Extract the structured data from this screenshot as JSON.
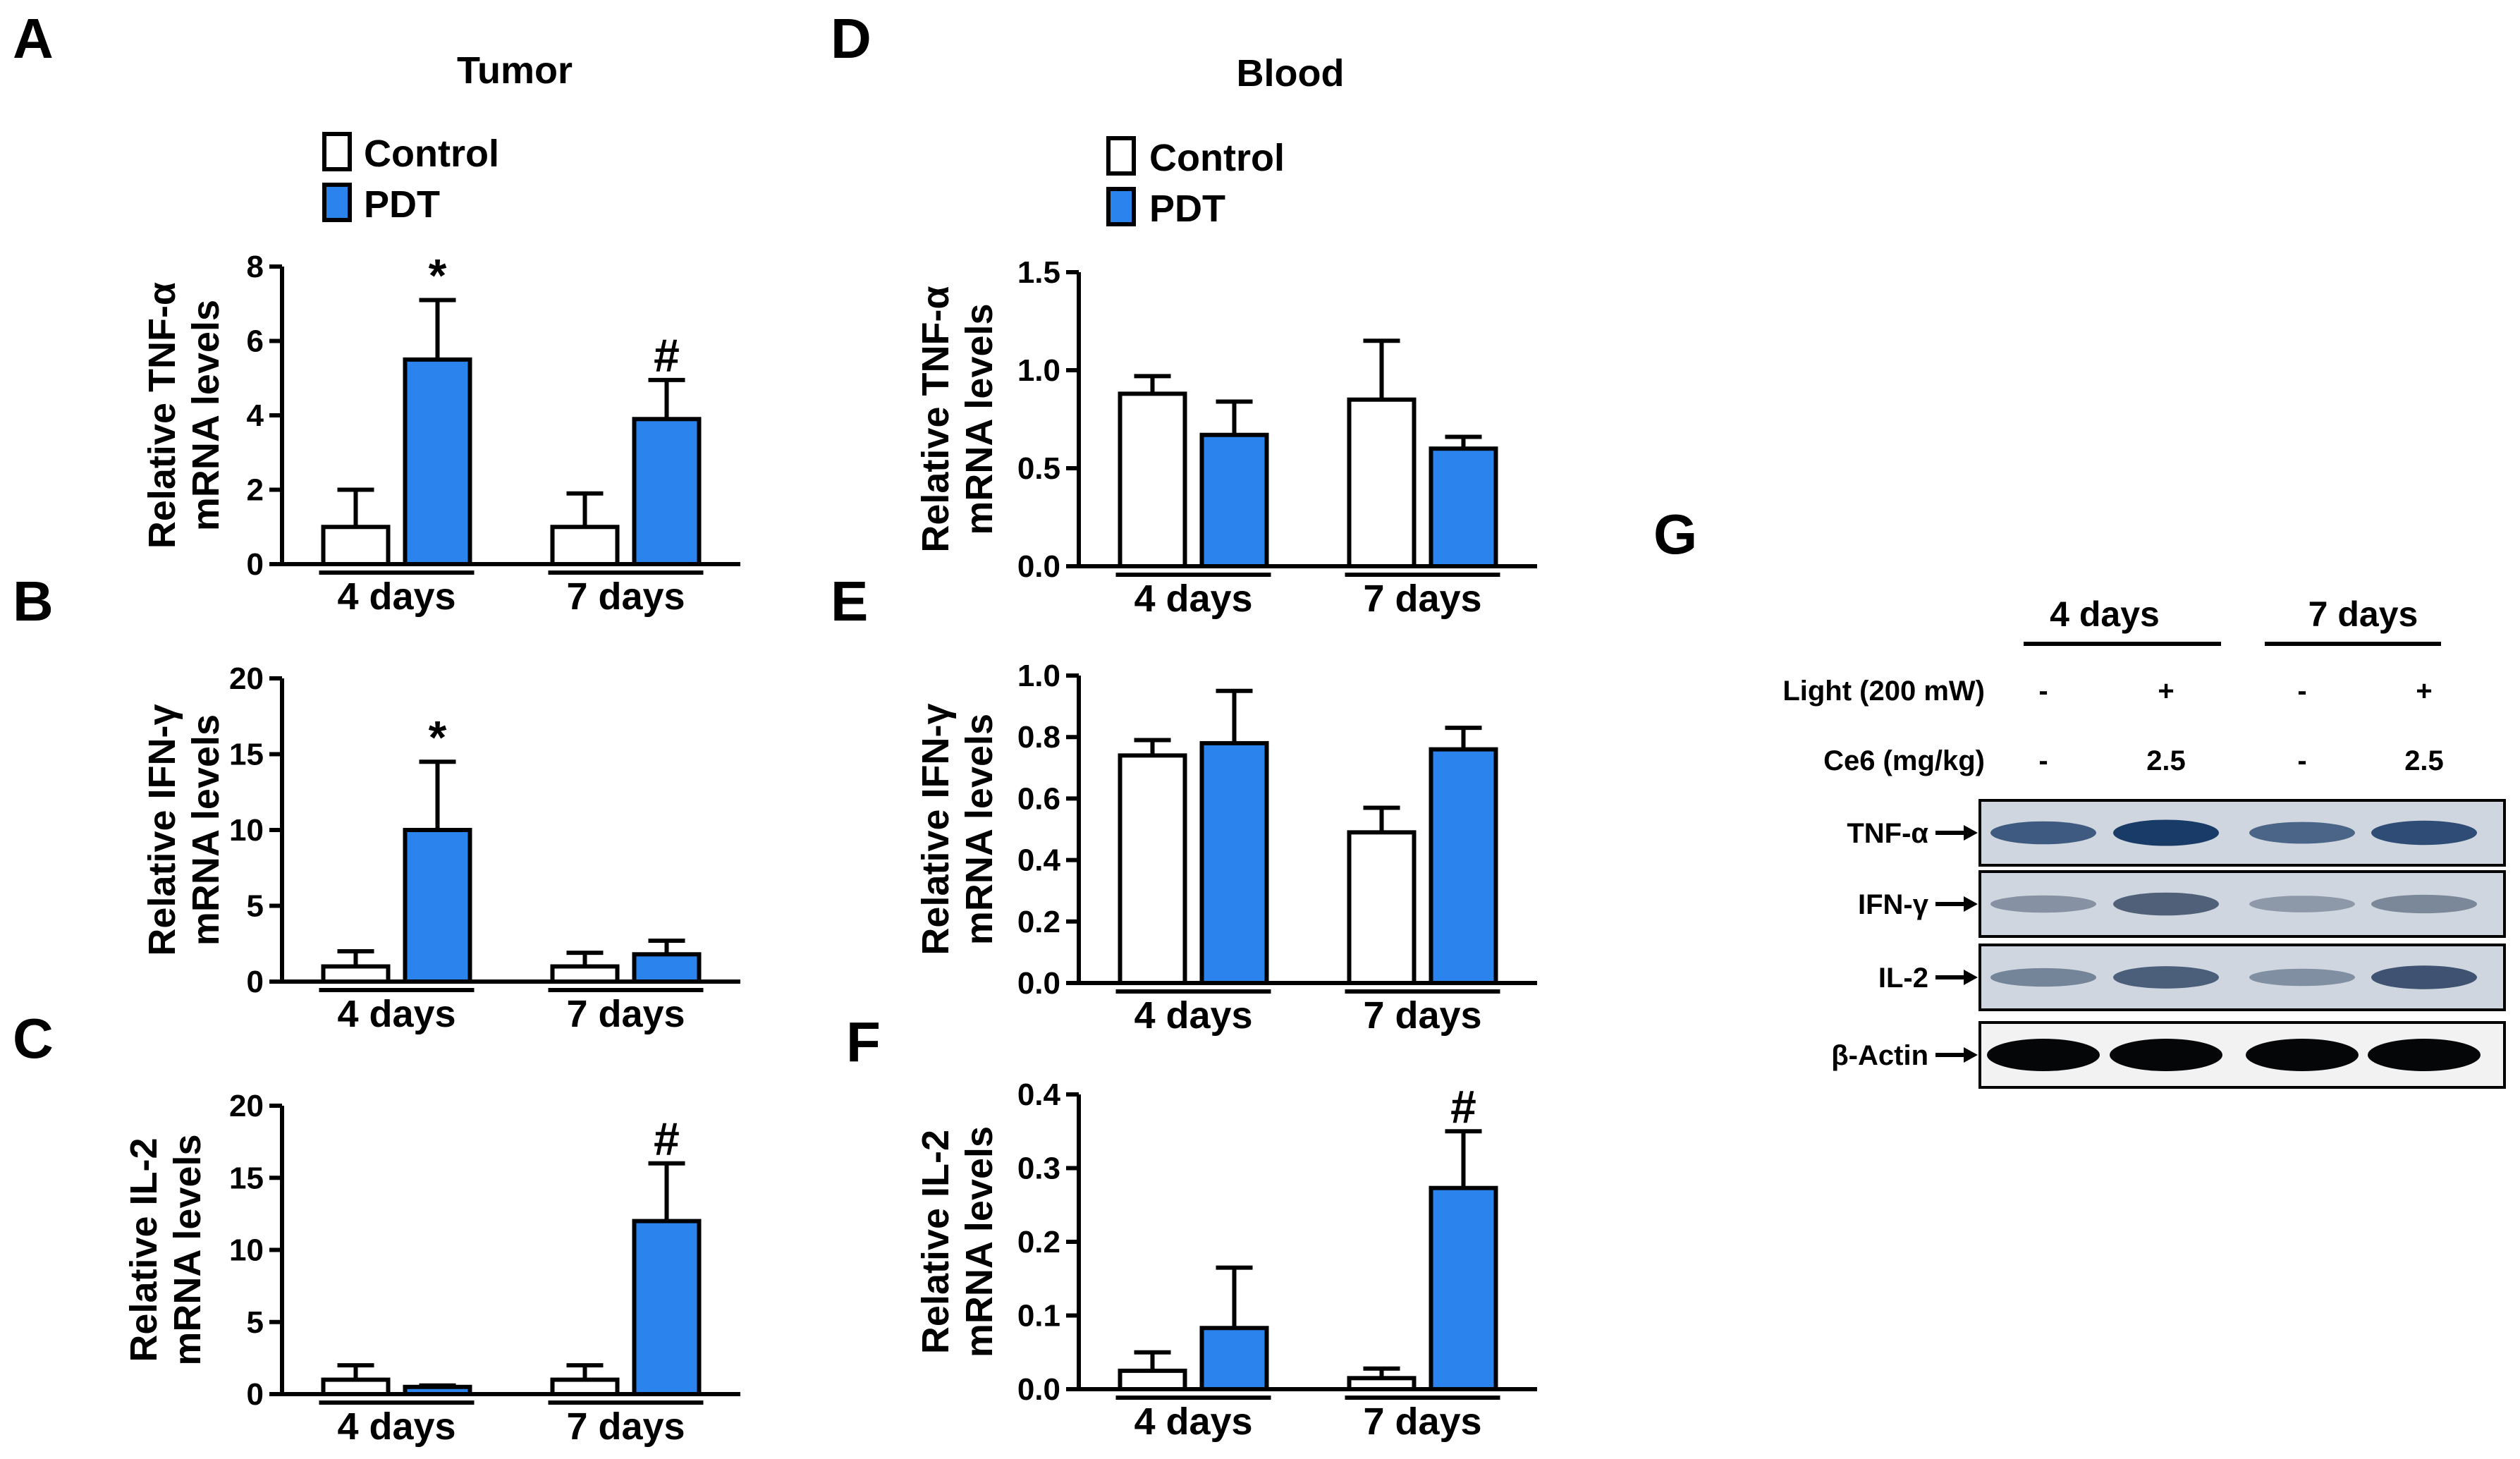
{
  "colors": {
    "control": "#ffffff",
    "pdt": "#2b84ee",
    "ink": "#000000"
  },
  "section_titles": {
    "tumor": "Tumor",
    "blood": "Blood"
  },
  "legend": {
    "control": "Control",
    "pdt": "PDT"
  },
  "chart_data": [
    {
      "panel": "A",
      "type": "bar",
      "group": "Tumor",
      "ylabel_line1": "Relative TNF-α",
      "ylabel_line2": "mRNA levels",
      "categories": [
        "4 days",
        "7 days"
      ],
      "ylim": [
        0,
        8
      ],
      "yticks": [
        "0",
        "2",
        "4",
        "6",
        "8"
      ],
      "ytick_values": [
        0,
        2,
        4,
        6,
        8
      ],
      "series": [
        {
          "name": "Control",
          "values": [
            1.0,
            1.0
          ],
          "errors": [
            1.0,
            0.9
          ]
        },
        {
          "name": "PDT",
          "values": [
            5.5,
            3.9
          ],
          "errors": [
            1.6,
            1.05
          ]
        }
      ],
      "annotations": [
        {
          "category": "4 days",
          "series": "PDT",
          "text": "*"
        },
        {
          "category": "7 days",
          "series": "PDT",
          "text": "#"
        }
      ]
    },
    {
      "panel": "B",
      "type": "bar",
      "group": "Tumor",
      "ylabel_line1": "Relative IFN-γ",
      "ylabel_line2": "mRNA levels",
      "categories": [
        "4 days",
        "7 days"
      ],
      "ylim": [
        0,
        20
      ],
      "yticks": [
        "0",
        "5",
        "10",
        "15",
        "20"
      ],
      "ytick_values": [
        0,
        5,
        10,
        15,
        20
      ],
      "series": [
        {
          "name": "Control",
          "values": [
            1.0,
            1.0
          ],
          "errors": [
            1.0,
            0.9
          ]
        },
        {
          "name": "PDT",
          "values": [
            10.0,
            1.8
          ],
          "errors": [
            4.5,
            0.9
          ]
        }
      ],
      "annotations": [
        {
          "category": "4 days",
          "series": "PDT",
          "text": "*"
        }
      ]
    },
    {
      "panel": "C",
      "type": "bar",
      "group": "Tumor",
      "ylabel_line1": "Relative IL-2",
      "ylabel_line2": "mRNA levels",
      "categories": [
        "4 days",
        "7 days"
      ],
      "ylim": [
        0,
        20
      ],
      "yticks": [
        "0",
        "5",
        "10",
        "15",
        "20"
      ],
      "ytick_values": [
        0,
        5,
        10,
        15,
        20
      ],
      "series": [
        {
          "name": "Control",
          "values": [
            1.0,
            1.0
          ],
          "errors": [
            1.0,
            1.0
          ]
        },
        {
          "name": "PDT",
          "values": [
            0.5,
            12.0
          ],
          "errors": [
            0.1,
            4.0
          ]
        }
      ],
      "annotations": [
        {
          "category": "7 days",
          "series": "PDT",
          "text": "#"
        }
      ]
    },
    {
      "panel": "D",
      "type": "bar",
      "group": "Blood",
      "ylabel_line1": "Relative TNF-α",
      "ylabel_line2": "mRNA levels",
      "categories": [
        "4 days",
        "7 days"
      ],
      "ylim": [
        0,
        1.5
      ],
      "yticks": [
        "0.0",
        "0.5",
        "1.0",
        "1.5"
      ],
      "ytick_values": [
        0,
        0.5,
        1.0,
        1.5
      ],
      "series": [
        {
          "name": "Control",
          "values": [
            0.88,
            0.85
          ],
          "errors": [
            0.09,
            0.3
          ]
        },
        {
          "name": "PDT",
          "values": [
            0.67,
            0.6
          ],
          "errors": [
            0.17,
            0.06
          ]
        }
      ],
      "annotations": []
    },
    {
      "panel": "E",
      "type": "bar",
      "group": "Blood",
      "ylabel_line1": "Relative IFN-γ",
      "ylabel_line2": "mRNA levels",
      "categories": [
        "4 days",
        "7 days"
      ],
      "ylim": [
        0,
        1.0
      ],
      "yticks": [
        "0.0",
        "0.2",
        "0.4",
        "0.6",
        "0.8",
        "1.0"
      ],
      "ytick_values": [
        0,
        0.2,
        0.4,
        0.6,
        0.8,
        1.0
      ],
      "series": [
        {
          "name": "Control",
          "values": [
            0.74,
            0.49
          ],
          "errors": [
            0.05,
            0.08
          ]
        },
        {
          "name": "PDT",
          "values": [
            0.78,
            0.76
          ],
          "errors": [
            0.17,
            0.07
          ]
        }
      ],
      "annotations": []
    },
    {
      "panel": "F",
      "type": "bar",
      "group": "Blood",
      "ylabel_line1": "Relative IL-2",
      "ylabel_line2": "mRNA levels",
      "categories": [
        "4 days",
        "7 days"
      ],
      "ylim": [
        0,
        0.4
      ],
      "yticks": [
        "0.0",
        "0.1",
        "0.2",
        "0.3",
        "0.4"
      ],
      "ytick_values": [
        0,
        0.1,
        0.2,
        0.3,
        0.4
      ],
      "series": [
        {
          "name": "Control",
          "values": [
            0.025,
            0.015
          ],
          "errors": [
            0.025,
            0.013
          ]
        },
        {
          "name": "PDT",
          "values": [
            0.083,
            0.273
          ],
          "errors": [
            0.082,
            0.077
          ]
        }
      ],
      "annotations": [
        {
          "category": "7 days",
          "series": "PDT",
          "text": "#"
        }
      ]
    }
  ],
  "blot": {
    "panel": "G",
    "groups": [
      "4 days",
      "7 days"
    ],
    "conditions": [
      {
        "label": "Light (200 mW)",
        "values": [
          "-",
          "+",
          "-",
          "+"
        ]
      },
      {
        "label": "Ce6 (mg/kg)",
        "values": [
          "-",
          "2.5",
          "-",
          "2.5"
        ]
      }
    ],
    "rows": [
      {
        "label": "TNF-α",
        "intensity": [
          0.7,
          0.95,
          0.6,
          0.8
        ],
        "band_color": "#123463"
      },
      {
        "label": "IFN-γ",
        "intensity": [
          0.25,
          0.7,
          0.2,
          0.35
        ],
        "band_color": "#2a3c58"
      },
      {
        "label": "IL-2",
        "intensity": [
          0.35,
          0.65,
          0.25,
          0.75
        ],
        "band_color": "#1e3457"
      },
      {
        "label": "β-Actin",
        "intensity": [
          1.0,
          1.0,
          1.0,
          1.0
        ],
        "band_color": "#050608"
      }
    ]
  }
}
